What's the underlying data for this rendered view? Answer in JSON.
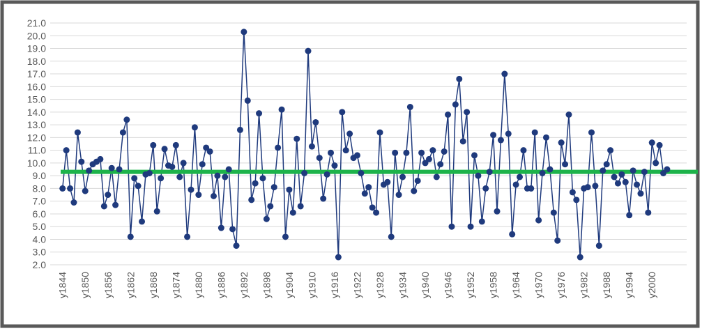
{
  "chart_data": {
    "type": "line",
    "categories": [
      "y1844",
      null,
      null,
      null,
      null,
      null,
      "y1850",
      null,
      null,
      null,
      null,
      null,
      "y1856",
      null,
      null,
      null,
      null,
      null,
      "y1862",
      null,
      null,
      null,
      null,
      null,
      "y1868",
      null,
      null,
      null,
      null,
      null,
      "y1874",
      null,
      null,
      null,
      null,
      null,
      "y1880",
      null,
      null,
      null,
      null,
      null,
      "y1886",
      null,
      null,
      null,
      null,
      null,
      "y1892",
      null,
      null,
      null,
      null,
      null,
      "y1898",
      null,
      null,
      null,
      null,
      null,
      "y1904",
      null,
      null,
      null,
      null,
      null,
      "y1910",
      null,
      null,
      null,
      null,
      null,
      "y1916",
      null,
      null,
      null,
      null,
      null,
      "y1922",
      null,
      null,
      null,
      null,
      null,
      "y1928",
      null,
      null,
      null,
      null,
      null,
      "y1934",
      null,
      null,
      null,
      null,
      null,
      "y1940",
      null,
      null,
      null,
      null,
      null,
      "y1946",
      null,
      null,
      null,
      null,
      null,
      "y1952",
      null,
      null,
      null,
      null,
      null,
      "y1958",
      null,
      null,
      null,
      null,
      null,
      "y1964",
      null,
      null,
      null,
      null,
      null,
      "y1970",
      null,
      null,
      null,
      null,
      null,
      "y1976",
      null,
      null,
      null,
      null,
      null,
      "y1982",
      null,
      null,
      null,
      null,
      null,
      "y1988",
      null,
      null,
      null,
      null,
      null,
      "y1994",
      null,
      null,
      null,
      null,
      null,
      "y2000",
      null,
      null,
      null,
      null
    ],
    "series": [
      {
        "color": "#1f3a7d",
        "values": [
          8.0,
          11.0,
          8.0,
          6.9,
          12.4,
          10.1,
          7.8,
          9.4,
          9.9,
          10.1,
          10.3,
          6.6,
          7.5,
          9.6,
          6.7,
          9.5,
          12.4,
          13.4,
          4.2,
          8.8,
          8.2,
          5.4,
          9.1,
          9.2,
          11.4,
          6.2,
          8.8,
          11.1,
          9.8,
          9.7,
          11.4,
          8.9,
          10.0,
          4.2,
          7.9,
          12.8,
          7.5,
          9.9,
          11.2,
          10.9,
          7.4,
          9.0,
          4.9,
          8.9,
          9.5,
          4.8,
          3.5,
          12.6,
          20.3,
          14.9,
          7.1,
          8.4,
          13.9,
          8.8,
          5.6,
          6.6,
          8.1,
          11.2,
          14.2,
          4.2,
          7.9,
          6.1,
          11.9,
          6.6,
          9.2,
          18.8,
          11.3,
          13.2,
          10.4,
          7.2,
          9.1,
          10.8,
          9.8,
          2.6,
          14.0,
          11.0,
          12.3,
          10.4,
          10.6,
          9.2,
          7.6,
          8.1,
          6.5,
          6.1,
          12.4,
          8.3,
          8.5,
          4.2,
          10.8,
          7.5,
          8.9,
          10.8,
          14.4,
          7.8,
          8.6,
          10.8,
          10.0,
          10.3,
          11.0,
          8.9,
          9.9,
          10.9,
          13.8,
          5.0,
          14.6,
          16.6,
          11.7,
          14.0,
          5.0,
          10.6,
          9.0,
          5.4,
          8.0,
          9.3,
          12.2,
          6.2,
          11.8,
          17.0,
          12.3,
          4.4,
          8.3,
          8.9,
          11.0,
          8.0,
          8.0,
          12.4,
          5.5,
          9.2,
          12.0,
          9.5,
          6.1,
          3.9,
          11.6,
          9.9,
          13.8,
          7.7,
          7.1,
          2.6,
          8.0,
          8.1,
          12.4,
          8.2,
          3.5,
          9.4,
          9.9,
          11.0,
          8.9,
          8.4,
          9.1,
          8.5,
          5.9,
          9.4,
          8.3,
          7.6,
          9.3,
          6.1,
          11.6,
          10.0,
          11.4,
          9.2,
          9.5
        ]
      }
    ],
    "hline": {
      "value": 9.3,
      "color": "#1db34a"
    },
    "ylim": [
      2,
      21
    ],
    "yticks": [
      {
        "value": 2,
        "label": "2.0"
      },
      {
        "value": 3,
        "label": "3.0"
      },
      {
        "value": 4,
        "label": "4.0"
      },
      {
        "value": 5,
        "label": "5.0"
      },
      {
        "value": 6,
        "label": "6.0"
      },
      {
        "value": 7,
        "label": "7.0"
      },
      {
        "value": 8,
        "label": "8.0"
      },
      {
        "value": 9,
        "label": "9.0"
      },
      {
        "value": 10,
        "label": "10.0"
      },
      {
        "value": 11,
        "label": "11.0"
      },
      {
        "value": 12,
        "label": "12.0"
      },
      {
        "value": 13,
        "label": "13.0"
      },
      {
        "value": 14,
        "label": "14.0"
      },
      {
        "value": 15,
        "label": "15.0"
      },
      {
        "value": 16,
        "label": "16.0"
      },
      {
        "value": 17,
        "label": "17.0"
      },
      {
        "value": 18,
        "label": "18.0"
      },
      {
        "value": 19,
        "label": "19.0"
      },
      {
        "value": 20,
        "label": "20.0"
      },
      {
        "value": 21,
        "label": "21.0"
      }
    ],
    "grid": true
  }
}
